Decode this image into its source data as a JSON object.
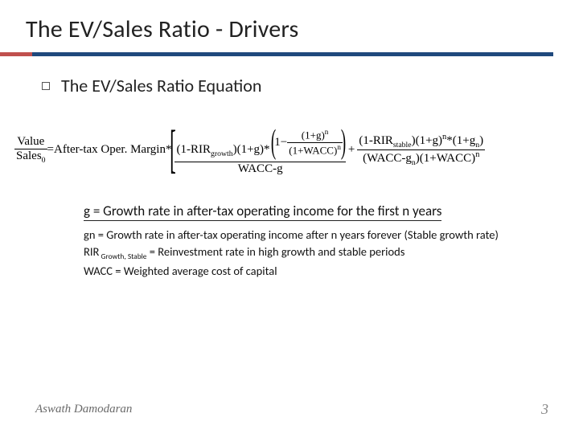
{
  "colors": {
    "rule": "#1f497d",
    "accent": "#c0504d",
    "text": "#222222",
    "footer": "#888888"
  },
  "title": "The EV/Sales Ratio - Drivers",
  "subhead": "The EV/Sales Ratio Equation",
  "formula": {
    "lhs_num": "Value",
    "lhs_den_base": "Sales",
    "lhs_den_sub": "0",
    "margin_label": "=After-tax Oper. Margin*",
    "rir_growth_base": "(1-RIR",
    "rir_growth_sub": "growth",
    "rir_growth_tail": ")(1+g)*",
    "one_minus": "1−",
    "inner_num": "(1+g)",
    "inner_exp": "n",
    "inner_den": "(1+WACC)",
    "inner_den_exp": "n",
    "first_den": "WACC-g",
    "plus": "+",
    "rir_stable_base": "(1-RIR",
    "rir_stable_sub": "stable",
    "rir_stable_tail": ")(1+g)",
    "exp_n": "n",
    "mult_gn": "*(1+g",
    "gn_sub": "n",
    "gn_tail": ")",
    "second_den_a": "(WACC-g",
    "second_den_sub": "n",
    "second_den_b": ")(1+WACC)",
    "second_den_exp": "n"
  },
  "defs": {
    "g": "g = Growth rate in after-tax operating income for the first n years",
    "gn": "gn = Growth rate in after-tax operating income after n years forever (Stable growth rate)",
    "rir_label": "RIR",
    "rir_sub": " Growth, Stable",
    "rir_rest": " = Reinvestment rate in high growth and stable periods",
    "wacc": "WACC = Weighted average cost of capital"
  },
  "footer": {
    "author": "Aswath Damodaran",
    "page": "3"
  }
}
